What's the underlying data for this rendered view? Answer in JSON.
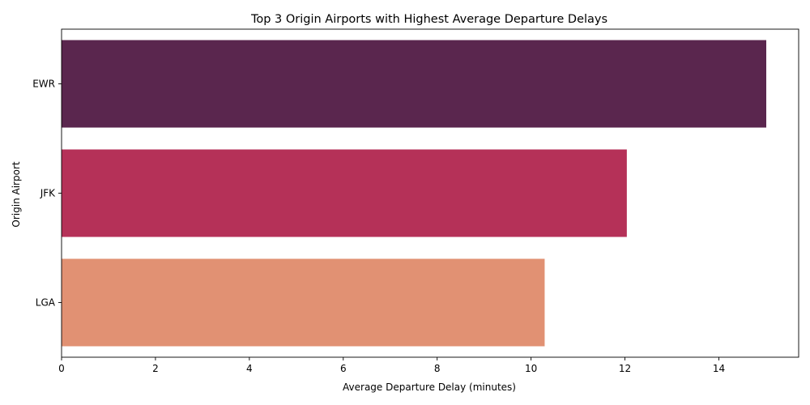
{
  "chart_data": {
    "type": "bar",
    "orientation": "horizontal",
    "title": "Top 3 Origin Airports with Highest Average Departure Delays",
    "xlabel": "Average Departure Delay (minutes)",
    "ylabel": "Origin Airport",
    "categories": [
      "EWR",
      "JFK",
      "LGA"
    ],
    "values": [
      15.01,
      12.04,
      10.29
    ],
    "colors": [
      "#5a264e",
      "#b53158",
      "#e19173"
    ],
    "xlim": [
      0,
      15.7
    ],
    "xticks": [
      0,
      2,
      4,
      6,
      8,
      10,
      12,
      14
    ],
    "grid": false
  }
}
